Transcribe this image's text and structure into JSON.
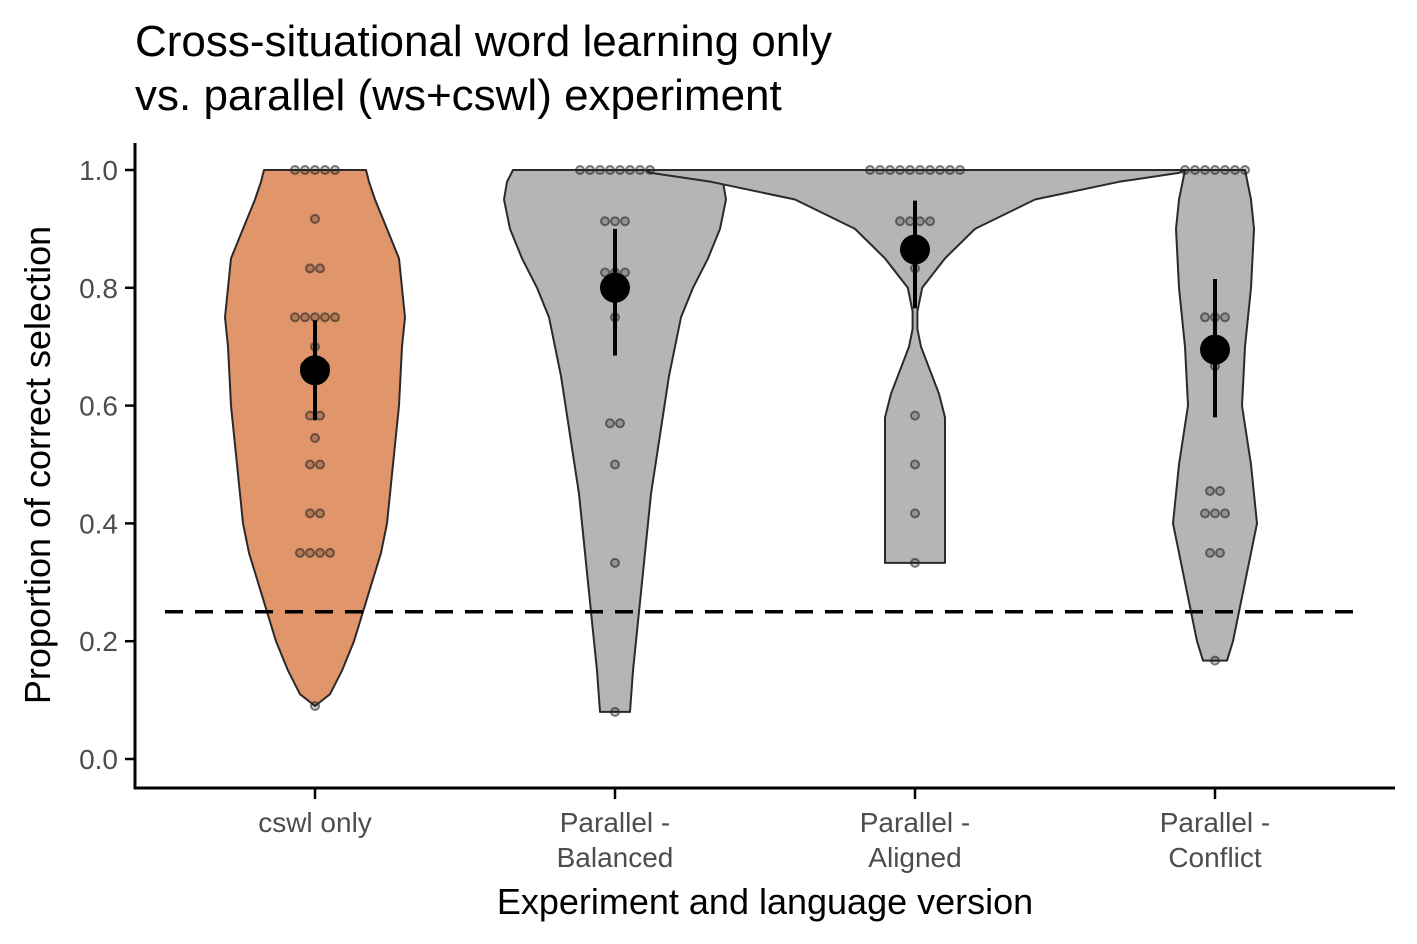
{
  "chart_data": {
    "type": "violin",
    "title_lines": [
      "Cross-situational word learning only",
      "vs. parallel (ws+cswl) experiment"
    ],
    "xlabel": "Experiment and language version",
    "ylabel": "Proportion of correct selection",
    "ylim": [
      0,
      1
    ],
    "yticks": [
      "0.0",
      "0.2",
      "0.4",
      "0.6",
      "0.8",
      "1.0"
    ],
    "reference_line": {
      "y": 0.25,
      "style": "dashed"
    },
    "grid": false,
    "legend": "none",
    "categories": [
      {
        "label_lines": [
          "cswl only"
        ],
        "fill": "#E0956A",
        "mean": 0.66,
        "ci": [
          0.575,
          0.745
        ],
        "violin": [
          [
            0.09,
            0.0
          ],
          [
            0.11,
            0.025
          ],
          [
            0.15,
            0.045
          ],
          [
            0.2,
            0.065
          ],
          [
            0.25,
            0.08
          ],
          [
            0.3,
            0.095
          ],
          [
            0.35,
            0.11
          ],
          [
            0.4,
            0.12
          ],
          [
            0.5,
            0.13
          ],
          [
            0.6,
            0.14
          ],
          [
            0.7,
            0.145
          ],
          [
            0.75,
            0.15
          ],
          [
            0.8,
            0.145
          ],
          [
            0.85,
            0.14
          ],
          [
            0.9,
            0.12
          ],
          [
            0.95,
            0.1
          ],
          [
            0.98,
            0.09
          ],
          [
            1.0,
            0.085
          ]
        ],
        "points": [
          [
            1.0,
            5
          ],
          [
            0.917,
            1
          ],
          [
            0.833,
            2
          ],
          [
            0.75,
            5
          ],
          [
            0.7,
            1
          ],
          [
            0.667,
            3
          ],
          [
            0.583,
            2
          ],
          [
            0.545,
            1
          ],
          [
            0.5,
            2
          ],
          [
            0.417,
            2
          ],
          [
            0.35,
            4
          ],
          [
            0.09,
            1
          ]
        ]
      },
      {
        "label_lines": [
          "Parallel -",
          "Balanced"
        ],
        "fill": "#B5B5B5",
        "mean": 0.8,
        "ci": [
          0.685,
          0.9
        ],
        "violin": [
          [
            0.08,
            0.025
          ],
          [
            0.15,
            0.03
          ],
          [
            0.25,
            0.04
          ],
          [
            0.35,
            0.05
          ],
          [
            0.45,
            0.06
          ],
          [
            0.55,
            0.075
          ],
          [
            0.65,
            0.09
          ],
          [
            0.75,
            0.11
          ],
          [
            0.8,
            0.13
          ],
          [
            0.85,
            0.155
          ],
          [
            0.9,
            0.175
          ],
          [
            0.95,
            0.185
          ],
          [
            0.98,
            0.18
          ],
          [
            1.0,
            0.17
          ]
        ],
        "points": [
          [
            1.0,
            8
          ],
          [
            0.913,
            3
          ],
          [
            0.826,
            3
          ],
          [
            0.75,
            1
          ],
          [
            0.57,
            2
          ],
          [
            0.5,
            1
          ],
          [
            0.333,
            1
          ],
          [
            0.08,
            1
          ]
        ]
      },
      {
        "label_lines": [
          "Parallel -",
          "Aligned"
        ],
        "fill": "#B5B5B5",
        "mean": 0.865,
        "ci": [
          0.765,
          0.948
        ],
        "violin": [
          [
            0.333,
            0.05
          ],
          [
            0.4,
            0.05
          ],
          [
            0.5,
            0.05
          ],
          [
            0.58,
            0.05
          ],
          [
            0.62,
            0.04
          ],
          [
            0.66,
            0.025
          ],
          [
            0.7,
            0.01
          ],
          [
            0.73,
            0.004
          ],
          [
            0.76,
            0.004
          ],
          [
            0.8,
            0.012
          ],
          [
            0.85,
            0.05
          ],
          [
            0.9,
            0.1
          ],
          [
            0.95,
            0.2
          ],
          [
            0.98,
            0.34
          ],
          [
            0.995,
            0.44
          ],
          [
            1.0,
            0.45
          ]
        ],
        "points": [
          [
            1.0,
            10
          ],
          [
            0.913,
            4
          ],
          [
            0.833,
            1
          ],
          [
            0.583,
            1
          ],
          [
            0.5,
            1
          ],
          [
            0.417,
            1
          ],
          [
            0.333,
            1
          ]
        ]
      },
      {
        "label_lines": [
          "Parallel -",
          "Conflict"
        ],
        "fill": "#B5B5B5",
        "mean": 0.695,
        "ci": [
          0.58,
          0.815
        ],
        "violin": [
          [
            0.167,
            0.02
          ],
          [
            0.2,
            0.03
          ],
          [
            0.25,
            0.04
          ],
          [
            0.3,
            0.05
          ],
          [
            0.4,
            0.07
          ],
          [
            0.5,
            0.06
          ],
          [
            0.6,
            0.045
          ],
          [
            0.7,
            0.05
          ],
          [
            0.8,
            0.06
          ],
          [
            0.9,
            0.065
          ],
          [
            0.95,
            0.06
          ],
          [
            1.0,
            0.05
          ]
        ],
        "points": [
          [
            1.0,
            7
          ],
          [
            0.75,
            3
          ],
          [
            0.667,
            1
          ],
          [
            0.455,
            2
          ],
          [
            0.417,
            3
          ],
          [
            0.35,
            2
          ],
          [
            0.167,
            1
          ]
        ]
      }
    ]
  }
}
